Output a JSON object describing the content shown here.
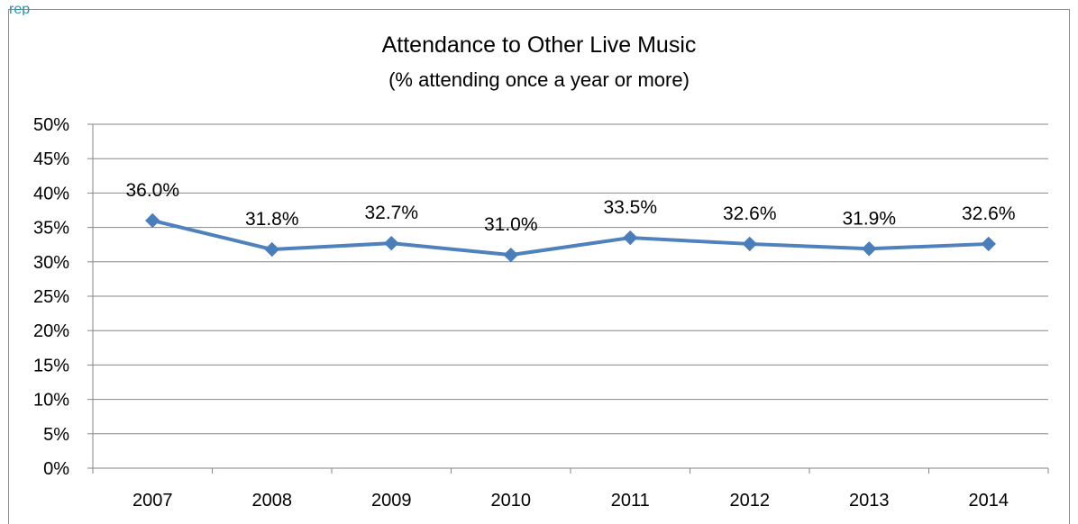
{
  "header": {
    "fragment": "rep"
  },
  "colors": {
    "series": "#4f81bd",
    "marker": "#4a7ebb",
    "grid": "#868686",
    "axis": "#868686"
  },
  "chart_data": {
    "type": "line",
    "title": "Attendance to Other Live Music",
    "subtitle": "(% attending once a year or more)",
    "xlabel": "",
    "ylabel": "",
    "categories": [
      "2007",
      "2008",
      "2009",
      "2010",
      "2011",
      "2012",
      "2013",
      "2014"
    ],
    "series": [
      {
        "values": [
          36.0,
          31.8,
          32.7,
          31.0,
          33.5,
          32.6,
          31.9,
          32.6
        ],
        "labels": [
          "36.0%",
          "31.8%",
          "32.7%",
          "31.0%",
          "33.5%",
          "32.6%",
          "31.9%",
          "32.6%"
        ]
      }
    ],
    "ylim": [
      0,
      50
    ],
    "yticks": [
      "0%",
      "5%",
      "10%",
      "15%",
      "20%",
      "25%",
      "30%",
      "35%",
      "40%",
      "45%",
      "50%"
    ],
    "grid": true,
    "legend": "none",
    "marker": "diamond"
  }
}
